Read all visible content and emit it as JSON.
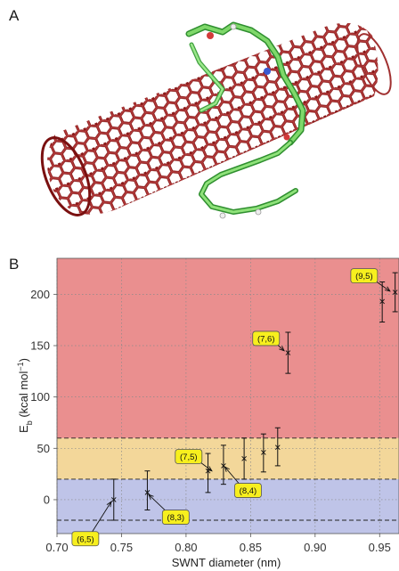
{
  "panels": {
    "a": "A",
    "b": "B"
  },
  "chart_data": {
    "type": "scatter",
    "xlabel": "SWNT diameter (nm)",
    "ylabel_main": "E",
    "ylabel_sub": "b",
    "ylabel_rest": " (kcal mol",
    "ylabel_sup": "−1",
    "ylabel_end": ")",
    "xlim": [
      0.7,
      0.965
    ],
    "ylim": [
      -33,
      235
    ],
    "xticks": [
      "0.70",
      "0.75",
      "0.80",
      "0.85",
      "0.90",
      "0.95"
    ],
    "yticks": [
      "0",
      "50",
      "100",
      "150",
      "200"
    ],
    "grid": true,
    "bands": [
      {
        "from": -33,
        "to": 20,
        "color": "#bfc4e8"
      },
      {
        "from": 20,
        "to": 60,
        "color": "#f3d79a"
      },
      {
        "from": 60,
        "to": 235,
        "color": "#ea8f8f"
      }
    ],
    "dashed_lines": [
      -20,
      20,
      60
    ],
    "points": [
      {
        "x": 0.744,
        "y": 0,
        "lo": -20,
        "hi": 20
      },
      {
        "x": 0.77,
        "y": 7,
        "lo": -10,
        "hi": 28
      },
      {
        "x": 0.817,
        "y": 28,
        "lo": 7,
        "hi": 45
      },
      {
        "x": 0.829,
        "y": 33,
        "lo": 15,
        "hi": 53
      },
      {
        "x": 0.845,
        "y": 40,
        "lo": 20,
        "hi": 60
      },
      {
        "x": 0.86,
        "y": 46,
        "lo": 27,
        "hi": 64
      },
      {
        "x": 0.871,
        "y": 51,
        "lo": 33,
        "hi": 70
      },
      {
        "x": 0.879,
        "y": 143,
        "lo": 123,
        "hi": 163
      },
      {
        "x": 0.952,
        "y": 193,
        "lo": 173,
        "hi": 212
      },
      {
        "x": 0.962,
        "y": 202,
        "lo": 183,
        "hi": 221
      }
    ],
    "annotations": [
      {
        "text": "(6,5)",
        "x": 0.722,
        "y": -38,
        "ax": 0.742,
        "ay": -2
      },
      {
        "text": "(8,3)",
        "x": 0.792,
        "y": -17,
        "ax": 0.771,
        "ay": 5
      },
      {
        "text": "(7,5)",
        "x": 0.802,
        "y": 42,
        "ax": 0.82,
        "ay": 28
      },
      {
        "text": "(8,4)",
        "x": 0.848,
        "y": 9,
        "ax": 0.83,
        "ay": 32
      },
      {
        "text": "(7,6)",
        "x": 0.862,
        "y": 157,
        "ax": 0.876,
        "ay": 145
      },
      {
        "text": "(9,5)",
        "x": 0.938,
        "y": 218,
        "ax": 0.958,
        "ay": 203
      }
    ]
  }
}
